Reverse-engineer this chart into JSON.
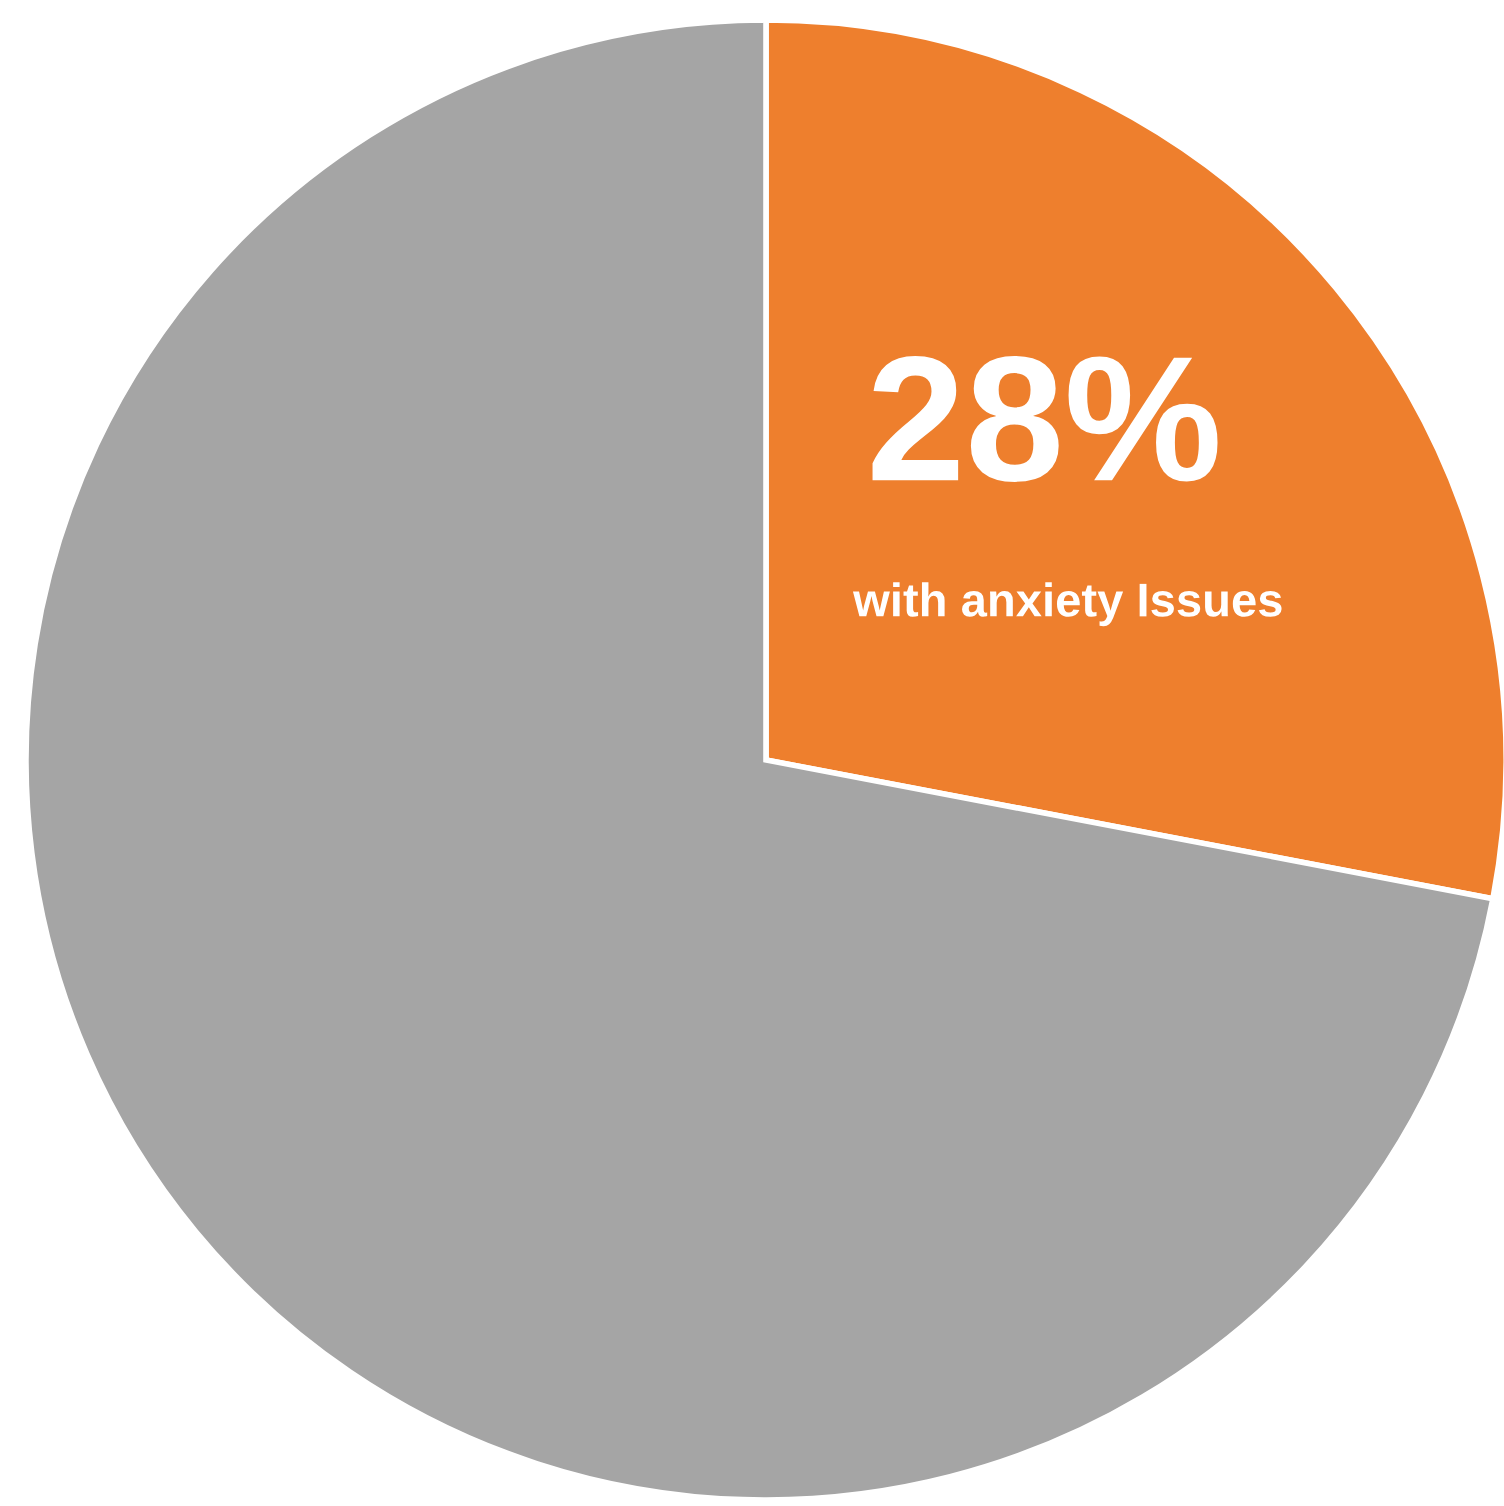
{
  "chart_data": {
    "type": "pie",
    "categories": [
      "with anxiety Issues",
      null
    ],
    "values": [
      28,
      72
    ],
    "colors": [
      "#ee7f2d",
      "#a5a5a5"
    ],
    "value_labels": [
      "28%",
      null
    ]
  }
}
